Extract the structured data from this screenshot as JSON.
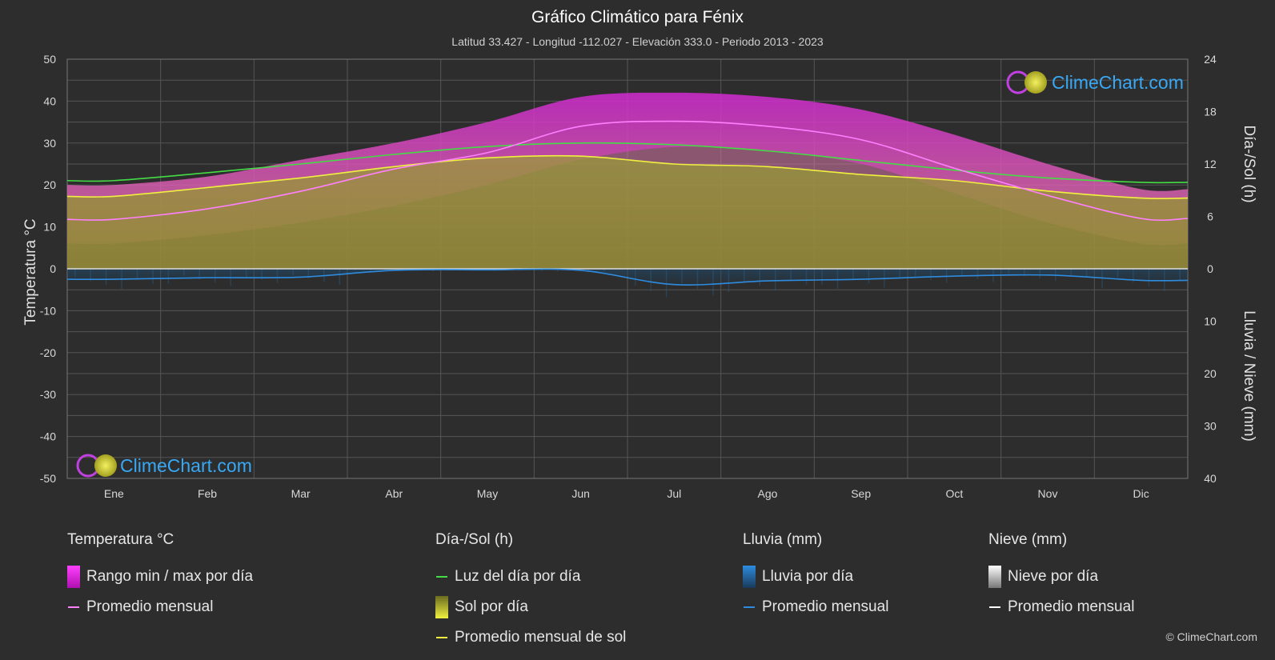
{
  "header": {
    "title": "Gráfico Climático para Fénix",
    "subtitle": "Latitud 33.427 - Longitud -112.027 - Elevación 333.0 - Periodo 2013 - 2023"
  },
  "logo": {
    "text": "ClimeChart.com"
  },
  "copyright": "© ClimeChart.com",
  "chart_data": {
    "type": "area",
    "categories": [
      "Ene",
      "Feb",
      "Mar",
      "Abr",
      "May",
      "Jun",
      "Jul",
      "Ago",
      "Sep",
      "Oct",
      "Nov",
      "Dic"
    ],
    "y_left": {
      "label": "Temperatura °C",
      "range": [
        -50,
        50
      ],
      "ticks": [
        50,
        40,
        30,
        20,
        10,
        0,
        -10,
        -20,
        -30,
        -40,
        -50
      ]
    },
    "y_right_top": {
      "label": "Día-/Sol (h)",
      "range": [
        0,
        24
      ],
      "ticks": [
        24,
        18,
        12,
        6,
        0
      ]
    },
    "y_right_bottom": {
      "label": "Lluvia / Nieve (mm)",
      "range": [
        0,
        40
      ],
      "ticks": [
        10,
        20,
        30,
        40
      ]
    },
    "grid": true,
    "series": [
      {
        "name": "Promedio mensual",
        "group": "Temperatura °C",
        "color": "#ff80ff",
        "values": [
          11.8,
          14.3,
          18.5,
          23.8,
          27.7,
          34.0,
          35.2,
          34.0,
          30.8,
          24.0,
          17.5,
          12.0
        ]
      },
      {
        "name": "Luz del día por día",
        "group": "Día-/Sol (h)",
        "color": "#44dd44",
        "values": [
          10.1,
          11.0,
          12.0,
          13.1,
          14.0,
          14.4,
          14.2,
          13.5,
          12.4,
          11.3,
          10.4,
          9.9
        ]
      },
      {
        "name": "Promedio mensual de sol",
        "group": "Día-/Sol (h)",
        "color": "#f0f040",
        "values": [
          8.3,
          9.3,
          10.4,
          11.7,
          12.7,
          12.9,
          12.0,
          11.7,
          10.8,
          10.1,
          8.9,
          8.1
        ]
      },
      {
        "name": "Promedio mensual",
        "group": "Lluvia (mm)",
        "color": "#2e8ce0",
        "values": [
          2.0,
          1.7,
          1.6,
          0.3,
          0.2,
          0.3,
          3.0,
          2.3,
          2.0,
          1.4,
          1.2,
          2.2
        ]
      },
      {
        "name": "Rango min / max por día",
        "group": "Temperatura °C",
        "min": [
          6,
          8,
          11,
          15,
          20,
          26,
          29,
          28,
          25,
          18,
          11,
          6
        ],
        "max": [
          20,
          22,
          26,
          30,
          35,
          41,
          42,
          41,
          38,
          32,
          25,
          19
        ]
      }
    ]
  },
  "legend": {
    "temperature": {
      "title": "Temperatura °C",
      "range_label": "Rango min / max por día",
      "avg_label": "Promedio mensual"
    },
    "sun": {
      "title": "Día-/Sol (h)",
      "daylight_label": "Luz del día por día",
      "sun_label": "Sol por día",
      "avg_label": "Promedio mensual de sol"
    },
    "rain": {
      "title": "Lluvia (mm)",
      "day_label": "Lluvia por día",
      "avg_label": "Promedio mensual"
    },
    "snow": {
      "title": "Nieve (mm)",
      "day_label": "Nieve por día",
      "avg_label": "Promedio mensual"
    }
  }
}
